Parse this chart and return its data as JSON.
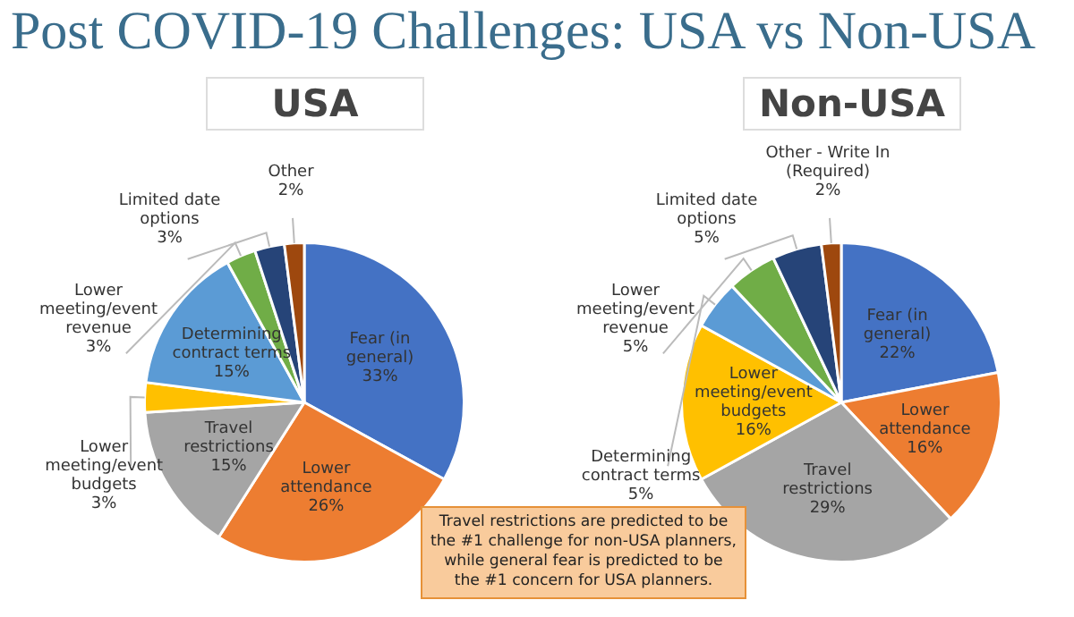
{
  "chart_data": [
    {
      "type": "other",
      "title": "Post COVID-19 Challenges: USA vs Non-USA"
    },
    {
      "type": "pie",
      "title": "USA",
      "categories": [
        "Fear (in general)",
        "Lower attendance",
        "Travel restrictions",
        "Lower meeting/event budgets",
        "Determining contract terms",
        "Lower meeting/event revenue",
        "Limited date options",
        "Other"
      ],
      "values": [
        33,
        26,
        15,
        3,
        15,
        3,
        3,
        2
      ],
      "value_labels": [
        "33%",
        "26%",
        "15%",
        "3%",
        "15%",
        "3%",
        "3%",
        "2%"
      ],
      "colors": [
        "#4472c4",
        "#ed7d31",
        "#a5a5a5",
        "#ffc000",
        "#5b9bd5",
        "#70ad47",
        "#264478",
        "#9e480e"
      ]
    },
    {
      "type": "pie",
      "title": "Non-USA",
      "categories": [
        "Fear (in general)",
        "Lower attendance",
        "Travel restrictions",
        "Lower meeting/event budgets",
        "Determining contract terms",
        "Lower meeting/event revenue",
        "Limited date options",
        "Other - Write In (Required)"
      ],
      "values": [
        22,
        16,
        29,
        16,
        5,
        5,
        5,
        2
      ],
      "value_labels": [
        "22%",
        "16%",
        "29%",
        "16%",
        "5%",
        "5%",
        "5%",
        "2%"
      ],
      "colors": [
        "#4472c4",
        "#ed7d31",
        "#a5a5a5",
        "#ffc000",
        "#5b9bd5",
        "#70ad47",
        "#264478",
        "#9e480e"
      ]
    },
    {
      "type": "other",
      "annotations": [
        "Travel restrictions are predicted to be the #1 challenge for non-USA planners, while general fear is predicted to be the #1 concern for USA planners."
      ]
    }
  ]
}
